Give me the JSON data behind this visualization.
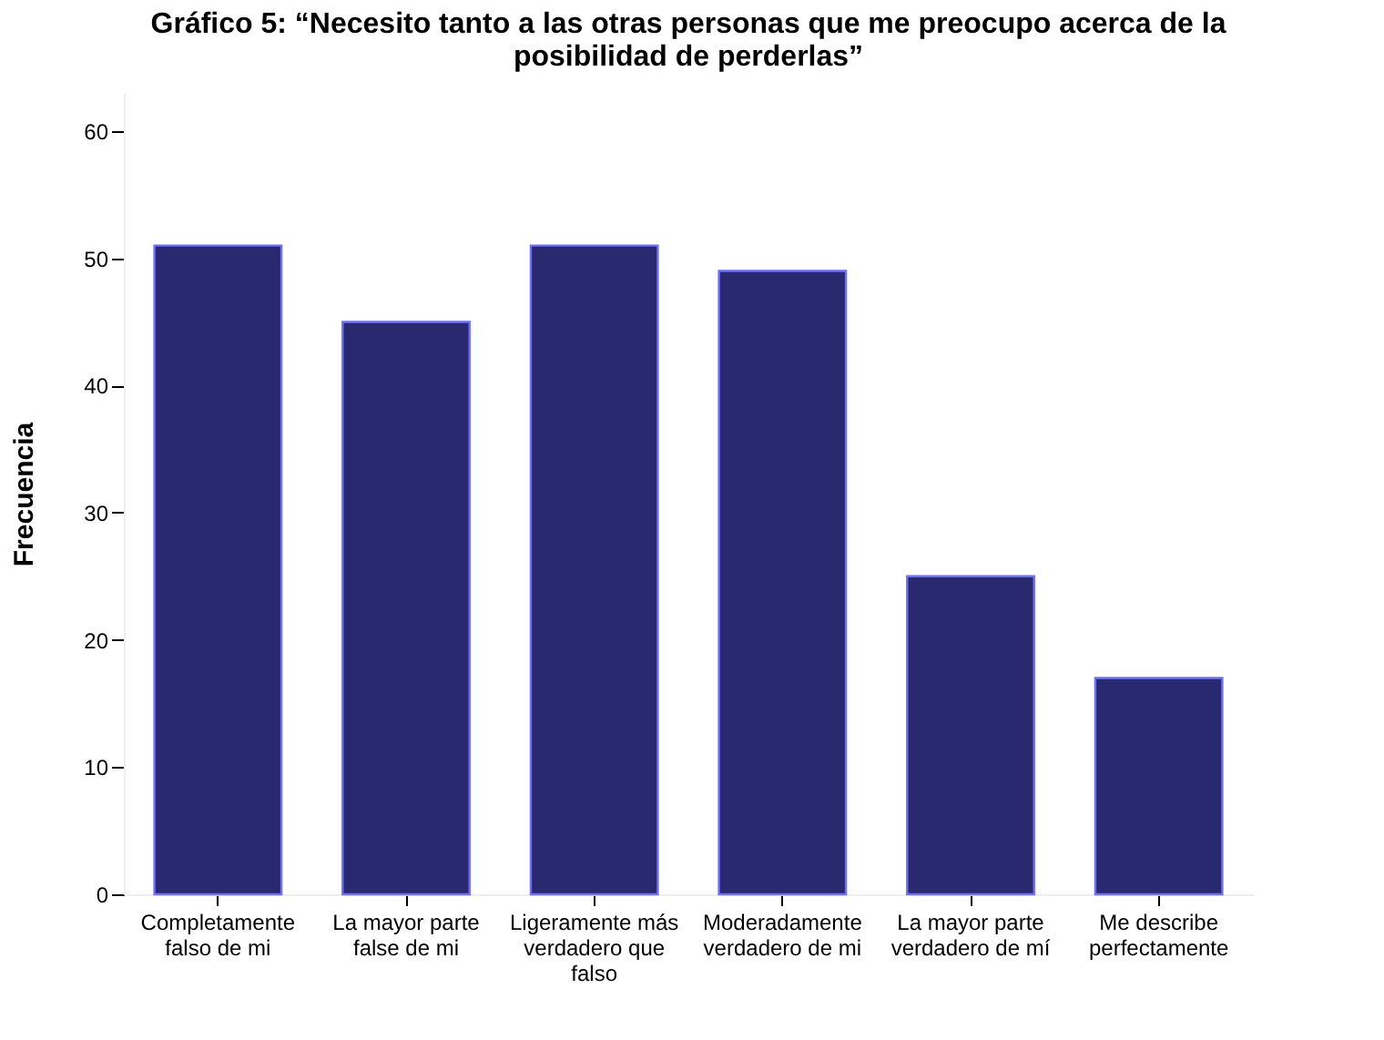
{
  "chart_data": {
    "type": "bar",
    "title": [
      "Gráfico 5: “Necesito tanto a las otras personas que me preocupo acerca de la",
      "posibilidad de perderlas”"
    ],
    "ylabel": "Frecuencia",
    "categories": [
      "Completamente falso de mi",
      "La mayor parte false de mi",
      "Ligeramente más verdadero que falso",
      "Moderadamente verdadero de mi",
      "La mayor parte verdadero de mí",
      "Me describe perfectamente"
    ],
    "values": [
      51,
      45,
      51,
      49,
      25,
      17
    ],
    "color": "#29296f",
    "ylim": [
      0,
      63
    ],
    "yticks": [
      0,
      10,
      20,
      30,
      40,
      50,
      60
    ],
    "grid": false
  }
}
